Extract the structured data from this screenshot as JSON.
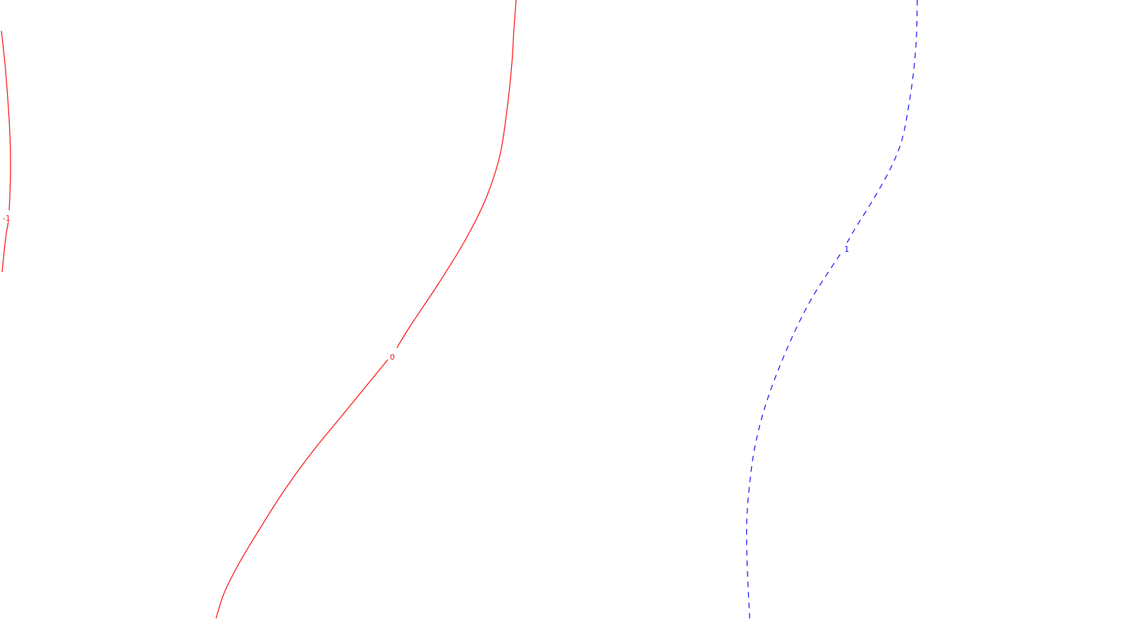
{
  "chart_data": {
    "type": "contour",
    "grid": false,
    "contours": [
      {
        "level": -1,
        "label": "-1",
        "color": "#ff0000",
        "line_style": "solid",
        "points": [
          [
            2,
            44
          ],
          [
            7,
            90
          ],
          [
            11,
            140
          ],
          [
            14,
            190
          ],
          [
            15,
            240
          ],
          [
            14,
            280
          ],
          [
            13,
            308
          ],
          [
            8,
            340
          ],
          [
            3,
            388
          ]
        ]
      },
      {
        "level": 0,
        "label": "0",
        "color": "#ff0000",
        "line_style": "solid",
        "points": [
          [
            736,
            0
          ],
          [
            733,
            40
          ],
          [
            730,
            90
          ],
          [
            725,
            140
          ],
          [
            717,
            200
          ],
          [
            708,
            240
          ],
          [
            690,
            290
          ],
          [
            662,
            345
          ],
          [
            625,
            405
          ],
          [
            585,
            465
          ],
          [
            560,
            505
          ],
          [
            535,
            535
          ],
          [
            490,
            590
          ],
          [
            445,
            645
          ],
          [
            405,
            700
          ],
          [
            370,
            755
          ],
          [
            340,
            805
          ],
          [
            320,
            845
          ],
          [
            308,
            882
          ]
        ]
      },
      {
        "level": 1,
        "label": "1",
        "color": "#0000ff",
        "line_style": "dashed",
        "points": [
          [
            1308,
            0
          ],
          [
            1307,
            50
          ],
          [
            1303,
            100
          ],
          [
            1296,
            150
          ],
          [
            1286,
            200
          ],
          [
            1270,
            240
          ],
          [
            1245,
            285
          ],
          [
            1220,
            325
          ],
          [
            1203,
            355
          ],
          [
            1180,
            390
          ],
          [
            1155,
            430
          ],
          [
            1130,
            480
          ],
          [
            1105,
            540
          ],
          [
            1088,
            590
          ],
          [
            1076,
            640
          ],
          [
            1069,
            690
          ],
          [
            1065,
            740
          ],
          [
            1065,
            790
          ],
          [
            1067,
            840
          ],
          [
            1069,
            882
          ]
        ]
      }
    ]
  }
}
